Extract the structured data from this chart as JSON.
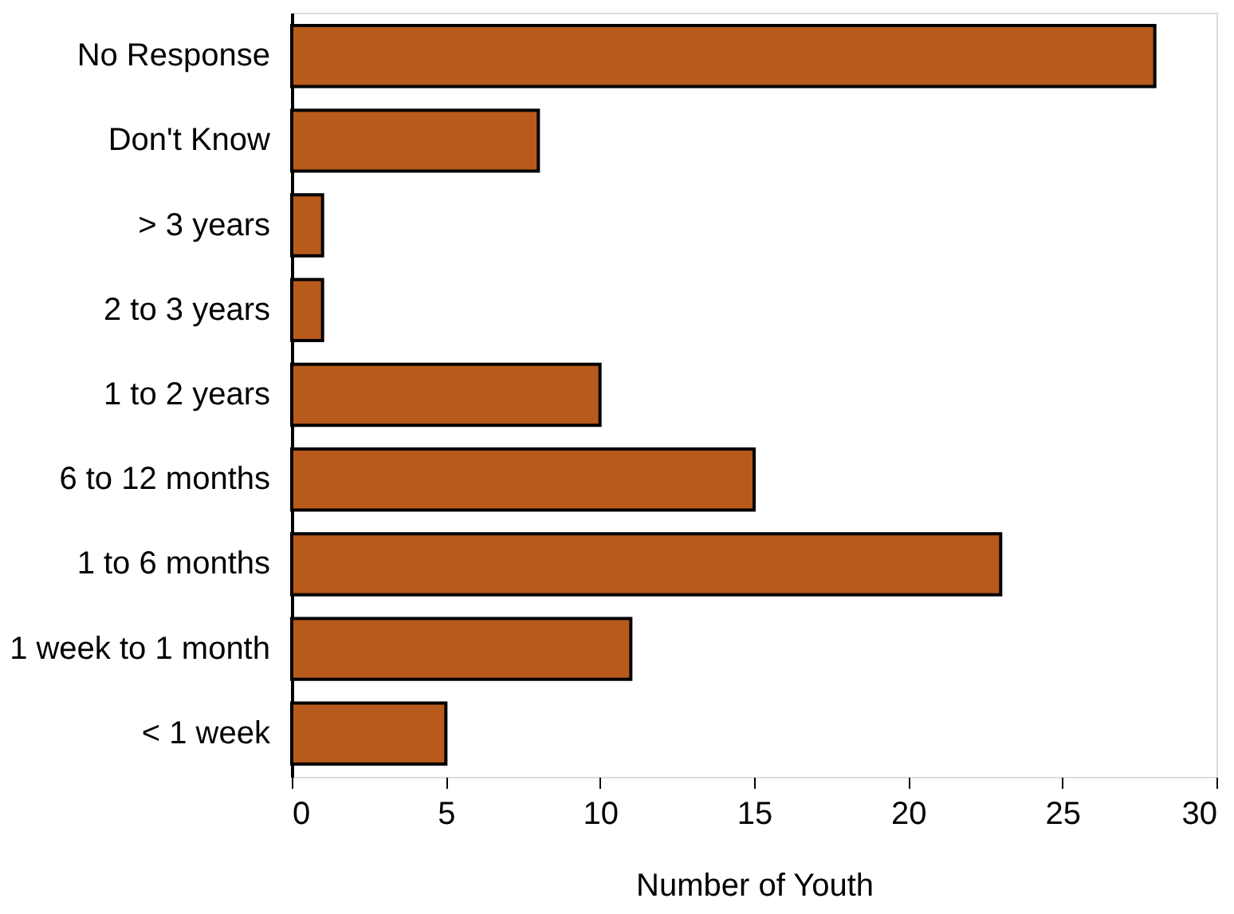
{
  "chart_data": {
    "type": "bar",
    "orientation": "horizontal",
    "xlabel": "Number of Youth",
    "categories": [
      "No Response",
      "Don't Know",
      "> 3 years",
      "2 to 3 years",
      "1 to 2 years",
      "6 to 12 months",
      "1 to 6 months",
      "1 week to 1 month",
      "< 1 week"
    ],
    "values": [
      28,
      8,
      1,
      1,
      10,
      15,
      23,
      11,
      5
    ],
    "color": "#b85a1c",
    "xlim": [
      0,
      30
    ],
    "xticks": [
      0,
      5,
      10,
      15,
      20,
      25,
      30
    ],
    "grid": false
  }
}
